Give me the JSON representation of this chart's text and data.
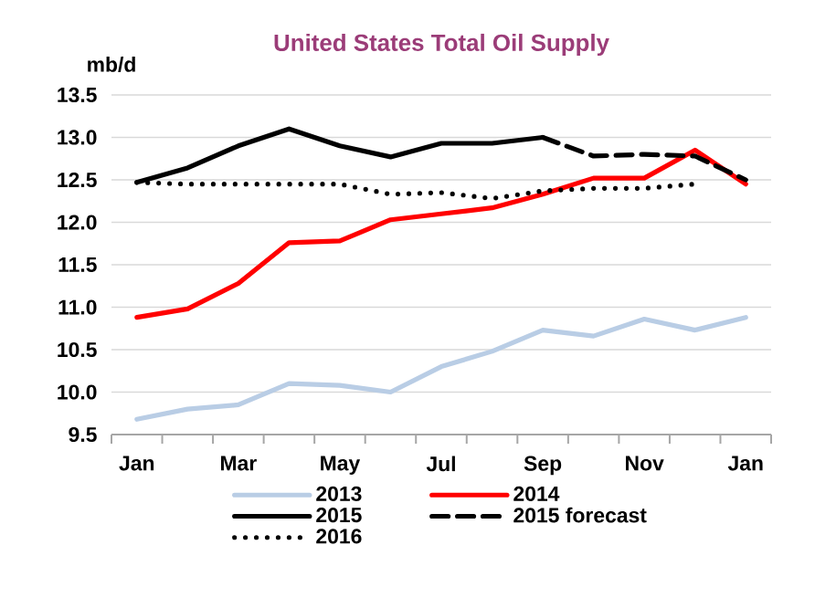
{
  "chart_data": {
    "type": "line",
    "title": "United States Total Oil Supply",
    "ylabel": "mb/d",
    "categories": [
      "Jan",
      null,
      "Mar",
      null,
      "May",
      null,
      "Jul",
      null,
      "Sep",
      null,
      "Nov",
      null,
      "Jan"
    ],
    "ylim": [
      9.5,
      13.5
    ],
    "yticks": [
      {
        "value": 9.5,
        "label": "9.5"
      },
      {
        "value": 10,
        "label": "10.0"
      },
      {
        "value": 10.5,
        "label": "10.5"
      },
      {
        "value": 11,
        "label": "11.0"
      },
      {
        "value": 11.5,
        "label": "11.5"
      },
      {
        "value": 12,
        "label": "12.0"
      },
      {
        "value": 12.5,
        "label": "12.5"
      },
      {
        "value": 13,
        "label": "13.0"
      },
      {
        "value": 13.5,
        "label": "13.5"
      }
    ],
    "grid": "y",
    "legend": "bottom",
    "marker": "none",
    "series": [
      {
        "name": "2013",
        "color": "#b9cde5",
        "line_style": "solid",
        "values": [
          9.68,
          9.8,
          9.85,
          10.1,
          10.08,
          10.0,
          10.3,
          10.48,
          10.73,
          10.66,
          10.86,
          10.73,
          10.88
        ]
      },
      {
        "name": "2014",
        "color": "#ff0000",
        "line_style": "solid",
        "values": [
          10.88,
          10.98,
          11.28,
          11.76,
          11.78,
          12.03,
          12.1,
          12.17,
          12.33,
          12.52,
          12.52,
          12.85,
          12.45
        ]
      },
      {
        "name": "2015",
        "color": "#000000",
        "line_style": "solid",
        "values": [
          12.47,
          12.64,
          12.9,
          13.1,
          12.9,
          12.77,
          12.93,
          12.93,
          13.0,
          null,
          null,
          null,
          null
        ]
      },
      {
        "name": "2015 forecast",
        "color": "#000000",
        "line_style": "dashed",
        "values": [
          null,
          null,
          null,
          null,
          null,
          null,
          null,
          null,
          13.0,
          12.78,
          12.8,
          12.78,
          12.5
        ]
      },
      {
        "name": "2016",
        "color": "#000000",
        "line_style": "dotted",
        "values": [
          12.47,
          12.45,
          12.45,
          12.45,
          12.45,
          12.33,
          12.35,
          12.28,
          12.37,
          12.4,
          12.4,
          12.45,
          null
        ]
      }
    ]
  }
}
